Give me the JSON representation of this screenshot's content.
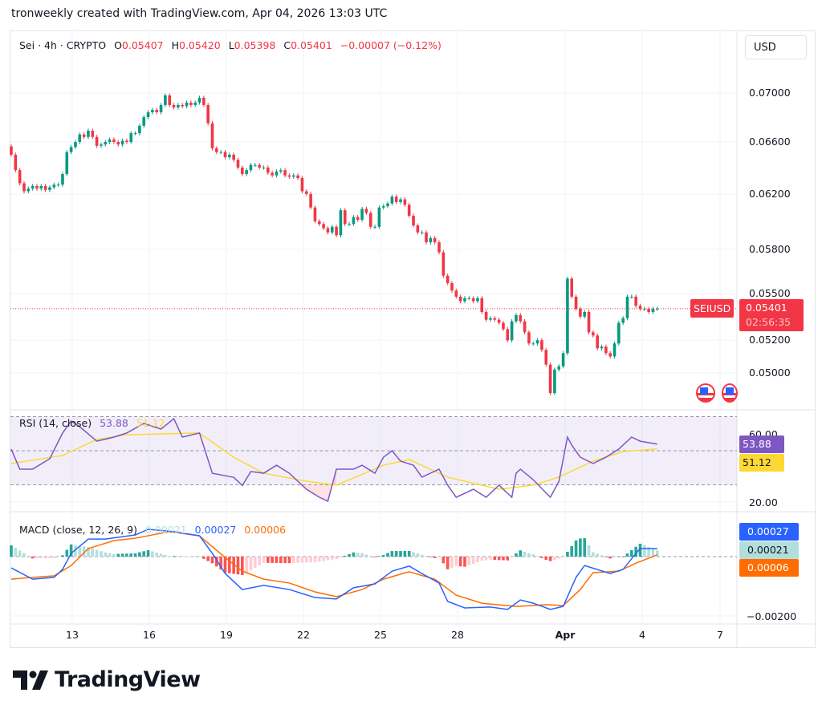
{
  "credit": "tronweekly created with TradingView.com, Apr 04, 2026 13:03 UTC",
  "legend": {
    "symbol": "Sei · 4h · CRYPTO",
    "o_label": "O",
    "o": "0.05407",
    "h_label": "H",
    "h": "0.05420",
    "l_label": "L",
    "l": "0.05398",
    "c_label": "C",
    "c": "0.05401",
    "change": "−0.00007 (−0.12%)"
  },
  "currency_button": "USD",
  "price_axis": [
    "0.07000",
    "0.06600",
    "0.06200",
    "0.05800",
    "0.05500",
    "0.05200",
    "0.05000"
  ],
  "last_price": {
    "symbol_tag": "SEIUSD",
    "price": "0.05401",
    "countdown": "02:56:35"
  },
  "rsi": {
    "title": "RSI (14, close)",
    "value": "53.88",
    "ma_value": "51.12",
    "axis": [
      "60.00",
      "20.00"
    ],
    "color": "#7e57c2",
    "ma_color": "#fdd835"
  },
  "macd": {
    "title": "MACD (close, 12, 26, 9)",
    "hist_value": "0.00021",
    "macd_value": "0.00027",
    "signal_value": "0.00006",
    "axis": [
      "−0.00200"
    ],
    "macd_color": "#2962ff",
    "signal_color": "#ff6d00",
    "hist_color": "#b2dfdb"
  },
  "time_axis": [
    "13",
    "16",
    "19",
    "22",
    "25",
    "28",
    "Apr",
    "4",
    "7"
  ],
  "brand": "TradingView",
  "colors": {
    "up": "#089981",
    "down": "#f23645"
  },
  "chart_data": [
    {
      "type": "candlestick",
      "title": "Sei · 4h · CRYPTO",
      "scale": "log",
      "ylim": [
        0.0482,
        0.0745
      ],
      "yticks": [
        0.07,
        0.066,
        0.062,
        0.058,
        0.055,
        0.052,
        0.05
      ],
      "xticks": [
        "13",
        "16",
        "19",
        "22",
        "25",
        "28",
        "Apr",
        "4",
        "7"
      ],
      "grid": true,
      "close": [
        0.065,
        0.0638,
        0.0628,
        0.0622,
        0.0624,
        0.0626,
        0.0624,
        0.0626,
        0.0623,
        0.0625,
        0.0627,
        0.0627,
        0.0635,
        0.0652,
        0.0656,
        0.066,
        0.0666,
        0.0664,
        0.0669,
        0.0664,
        0.0657,
        0.0658,
        0.066,
        0.0662,
        0.066,
        0.0658,
        0.0661,
        0.066,
        0.0667,
        0.0667,
        0.0673,
        0.068,
        0.0684,
        0.0686,
        0.0684,
        0.069,
        0.0698,
        0.069,
        0.0688,
        0.069,
        0.0689,
        0.0692,
        0.069,
        0.0692,
        0.0696,
        0.069,
        0.0675,
        0.0655,
        0.0652,
        0.0652,
        0.0648,
        0.065,
        0.0646,
        0.064,
        0.0635,
        0.0638,
        0.0642,
        0.0642,
        0.064,
        0.064,
        0.0636,
        0.0634,
        0.0637,
        0.0638,
        0.0634,
        0.0633,
        0.0634,
        0.0632,
        0.0622,
        0.062,
        0.061,
        0.06,
        0.0598,
        0.0595,
        0.0592,
        0.0596,
        0.059,
        0.0608,
        0.0598,
        0.0598,
        0.0603,
        0.0601,
        0.0609,
        0.0606,
        0.0596,
        0.0596,
        0.061,
        0.0611,
        0.0613,
        0.0618,
        0.0614,
        0.0616,
        0.0612,
        0.0604,
        0.0597,
        0.0592,
        0.0592,
        0.0585,
        0.0588,
        0.0585,
        0.0578,
        0.0562,
        0.0557,
        0.0552,
        0.0548,
        0.0545,
        0.0547,
        0.0547,
        0.0545,
        0.0547,
        0.0538,
        0.0533,
        0.0534,
        0.0533,
        0.0531,
        0.0527,
        0.052,
        0.0532,
        0.0536,
        0.0532,
        0.0525,
        0.0518,
        0.0518,
        0.052,
        0.0514,
        0.0505,
        0.0488,
        0.0502,
        0.0504,
        0.0512,
        0.056,
        0.0548,
        0.054,
        0.0535,
        0.0538,
        0.0525,
        0.0523,
        0.0515,
        0.0516,
        0.0512,
        0.051,
        0.0518,
        0.0531,
        0.0534,
        0.0548,
        0.0548,
        0.0542,
        0.054,
        0.054,
        0.0538,
        0.054,
        0.05401
      ],
      "last": 0.05401
    },
    {
      "type": "line",
      "title": "RSI (14, close)",
      "ylim": [
        15,
        75
      ],
      "bands": [
        30,
        50,
        70
      ],
      "series": [
        {
          "name": "RSI",
          "points": [
            [
              0,
              50.9
            ],
            [
              2,
              39.2
            ],
            [
              5,
              39.2
            ],
            [
              9,
              45.3
            ],
            [
              12,
              60.4
            ],
            [
              14,
              67.4
            ],
            [
              16,
              64.1
            ],
            [
              20,
              55.6
            ],
            [
              24,
              58
            ],
            [
              27,
              60.4
            ],
            [
              31,
              66
            ],
            [
              35,
              62.7
            ],
            [
              38,
              68.8
            ],
            [
              40,
              58
            ],
            [
              44,
              60.4
            ],
            [
              47,
              36.8
            ],
            [
              52,
              34.4
            ],
            [
              54,
              29.6
            ],
            [
              56,
              37.8
            ],
            [
              59,
              36.8
            ],
            [
              62,
              41.5
            ],
            [
              65,
              36.8
            ],
            [
              69,
              27.4
            ],
            [
              72,
              22.7
            ],
            [
              74,
              20.4
            ],
            [
              76,
              39.2
            ],
            [
              80,
              39.2
            ],
            [
              82,
              41.5
            ],
            [
              85,
              36.8
            ],
            [
              87,
              46.2
            ],
            [
              89,
              50
            ],
            [
              91,
              43.9
            ],
            [
              94,
              41.5
            ],
            [
              96,
              34.5
            ],
            [
              100,
              39.2
            ],
            [
              102,
              29.8
            ],
            [
              104,
              22.7
            ],
            [
              108,
              27.4
            ],
            [
              111,
              22.7
            ],
            [
              114,
              29.8
            ],
            [
              117,
              22.7
            ],
            [
              118,
              36.8
            ],
            [
              119,
              39.2
            ],
            [
              122,
              33
            ],
            [
              126,
              22.7
            ],
            [
              128,
              32
            ],
            [
              130,
              58
            ],
            [
              131,
              53.3
            ],
            [
              133,
              46.2
            ],
            [
              136,
              42.5
            ],
            [
              139,
              46.2
            ],
            [
              142,
              51
            ],
            [
              145,
              58
            ],
            [
              147,
              55.6
            ],
            [
              151,
              53.88
            ]
          ]
        },
        {
          "name": "RSI-based MA",
          "points": [
            [
              0,
              42.5
            ],
            [
              12,
              47.2
            ],
            [
              20,
              56.6
            ],
            [
              27,
              59.4
            ],
            [
              44,
              60.4
            ],
            [
              52,
              46.2
            ],
            [
              59,
              36.8
            ],
            [
              69,
              32.1
            ],
            [
              76,
              29.8
            ],
            [
              87,
              41.5
            ],
            [
              93,
              44.8
            ],
            [
              102,
              34.5
            ],
            [
              114,
              27.4
            ],
            [
              122,
              29.8
            ],
            [
              128,
              34.5
            ],
            [
              136,
              43.9
            ],
            [
              143,
              49.5
            ],
            [
              151,
              51.12
            ]
          ]
        }
      ]
    },
    {
      "type": "line",
      "title": "MACD (close, 12, 26, 9)",
      "ylim": [
        -0.0023,
        0.0012
      ],
      "series": [
        {
          "name": "MACD",
          "points": [
            [
              0,
              -0.00038
            ],
            [
              5,
              -0.00076
            ],
            [
              10,
              -0.0007
            ],
            [
              12,
              -0.00043
            ],
            [
              14,
              0.00011
            ],
            [
              18,
              0.00059
            ],
            [
              22,
              0.00059
            ],
            [
              29,
              0.00073
            ],
            [
              32,
              0.00092
            ],
            [
              38,
              0.00084
            ],
            [
              44,
              0.0007
            ],
            [
              47,
              0.00011
            ],
            [
              50,
              -0.00057
            ],
            [
              54,
              -0.00111
            ],
            [
              59,
              -0.00097
            ],
            [
              65,
              -0.00111
            ],
            [
              71,
              -0.00138
            ],
            [
              76,
              -0.00143
            ],
            [
              80,
              -0.00105
            ],
            [
              85,
              -0.00092
            ],
            [
              89,
              -0.00049
            ],
            [
              93,
              -0.00032
            ],
            [
              96,
              -0.00057
            ],
            [
              100,
              -0.00089
            ],
            [
              102,
              -0.00151
            ],
            [
              106,
              -0.00173
            ],
            [
              112,
              -0.0017
            ],
            [
              116,
              -0.00178
            ],
            [
              119,
              -0.00146
            ],
            [
              122,
              -0.00157
            ],
            [
              126,
              -0.00178
            ],
            [
              129,
              -0.00168
            ],
            [
              132,
              -0.0007
            ],
            [
              134,
              -0.0003
            ],
            [
              140,
              -0.00057
            ],
            [
              143,
              -0.00043
            ],
            [
              146,
              0.00011
            ],
            [
              147,
              0.00027
            ],
            [
              151,
              0.00027
            ]
          ]
        },
        {
          "name": "Signal",
          "points": [
            [
              0,
              -0.00076
            ],
            [
              5,
              -0.0007
            ],
            [
              10,
              -0.00065
            ],
            [
              14,
              -0.0003
            ],
            [
              18,
              0.00027
            ],
            [
              24,
              0.00054
            ],
            [
              29,
              0.00062
            ],
            [
              37,
              0.00084
            ],
            [
              44,
              0.0007
            ],
            [
              50,
              -3e-05
            ],
            [
              54,
              -0.00049
            ],
            [
              59,
              -0.00076
            ],
            [
              65,
              -0.00089
            ],
            [
              71,
              -0.00119
            ],
            [
              76,
              -0.00135
            ],
            [
              82,
              -0.00111
            ],
            [
              87,
              -0.00076
            ],
            [
              93,
              -0.00051
            ],
            [
              99,
              -0.00076
            ],
            [
              104,
              -0.0013
            ],
            [
              110,
              -0.00157
            ],
            [
              118,
              -0.00168
            ],
            [
              125,
              -0.00162
            ],
            [
              129,
              -0.00165
            ],
            [
              133,
              -0.00111
            ],
            [
              136,
              -0.00054
            ],
            [
              142,
              -0.00049
            ],
            [
              146,
              -0.00022
            ],
            [
              151,
              6e-05
            ]
          ]
        }
      ]
    }
  ]
}
